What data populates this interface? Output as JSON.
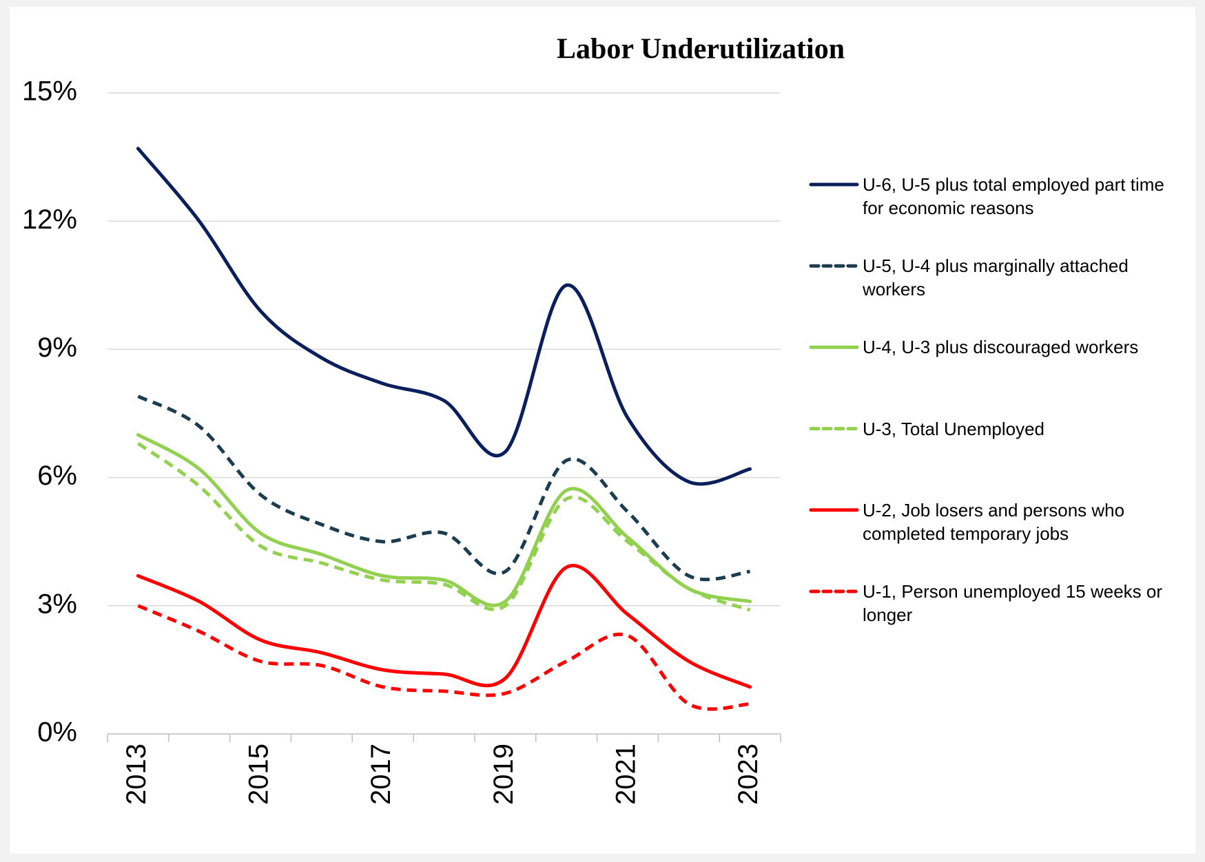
{
  "chart_data": {
    "type": "line",
    "title": "Labor Underutilization",
    "categories": [
      "2013",
      null,
      "2015",
      null,
      "2017",
      null,
      "2019",
      null,
      "2021",
      null,
      "2023"
    ],
    "ylim": [
      0,
      15
    ],
    "yticks": [
      {
        "value": 0,
        "label": "0%"
      },
      {
        "value": 3,
        "label": "3%"
      },
      {
        "value": 6,
        "label": "6%"
      },
      {
        "value": 9,
        "label": "9%"
      },
      {
        "value": 12,
        "label": "12%"
      },
      {
        "value": 15,
        "label": "15%"
      }
    ],
    "grid": true,
    "legend": "right",
    "series": [
      {
        "name": "U-6, U-5 plus total employed part time for economic reasons",
        "color": "#0b1f5c",
        "dashed": false,
        "values": [
          13.7,
          12.0,
          9.9,
          8.8,
          8.2,
          7.8,
          6.6,
          10.5,
          7.4,
          5.9,
          6.2
        ]
      },
      {
        "name": "U-5, U-4 plus marginally attached workers",
        "color": "#1b3d4f",
        "dashed": true,
        "values": [
          7.9,
          7.2,
          5.6,
          4.9,
          4.5,
          4.7,
          3.8,
          6.4,
          5.2,
          3.7,
          3.8
        ]
      },
      {
        "name": "U-4, U-3 plus discouraged workers",
        "color": "#92d050",
        "dashed": false,
        "values": [
          7.0,
          6.2,
          4.7,
          4.2,
          3.7,
          3.6,
          3.1,
          5.7,
          4.6,
          3.4,
          3.1
        ]
      },
      {
        "name": "U-3, Total Unemployed",
        "color": "#92d050",
        "dashed": true,
        "values": [
          6.8,
          5.8,
          4.4,
          4.0,
          3.6,
          3.5,
          3.0,
          5.5,
          4.5,
          3.4,
          2.9
        ]
      },
      {
        "name": "U-2, Job losers and persons who completed temporary jobs",
        "color": "#ff0000",
        "dashed": false,
        "values": [
          3.7,
          3.1,
          2.2,
          1.9,
          1.5,
          1.4,
          1.3,
          3.9,
          2.8,
          1.7,
          1.1
        ]
      },
      {
        "name": "U-1, Person unemployed 15 weeks or longer",
        "color": "#ff0000",
        "dashed": true,
        "values": [
          3.0,
          2.4,
          1.7,
          1.6,
          1.1,
          1.0,
          0.95,
          1.7,
          2.3,
          0.7,
          0.7
        ]
      }
    ]
  }
}
